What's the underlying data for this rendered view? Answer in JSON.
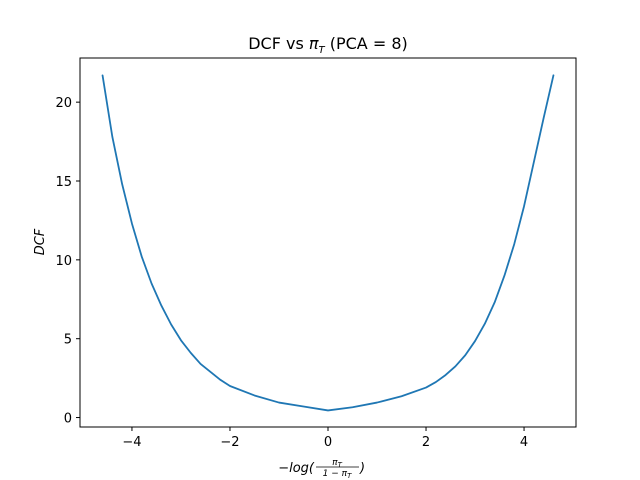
{
  "chart_data": {
    "type": "line",
    "title_parts": {
      "prefix": "DCF vs ",
      "symbol": "π",
      "sub": "T",
      "suffix": " (PCA = 8)"
    },
    "xlabel_parts": {
      "lead": "−log(",
      "num": "π",
      "num_sub": "T",
      "den": "1 − π",
      "den_sub": "T",
      "trail": ")"
    },
    "ylabel": "DCF",
    "xlim": [
      -5.06,
      5.06
    ],
    "ylim": [
      -0.6,
      22.8
    ],
    "x_ticks": [
      -4,
      -2,
      0,
      2,
      4
    ],
    "x_tick_labels": [
      "−4",
      "−2",
      "0",
      "2",
      "4"
    ],
    "y_ticks": [
      0,
      5,
      10,
      15,
      20
    ],
    "y_tick_labels": [
      "0",
      "5",
      "10",
      "15",
      "20"
    ],
    "grid": false,
    "series": [
      {
        "color": "#1f77b4",
        "x": [
          -4.6,
          -4.4,
          -4.2,
          -4.0,
          -3.8,
          -3.6,
          -3.4,
          -3.2,
          -3.0,
          -2.8,
          -2.6,
          -2.4,
          -2.2,
          -2.0,
          -1.5,
          -1.0,
          -0.5,
          0.0,
          0.5,
          1.0,
          1.5,
          2.0,
          2.2,
          2.4,
          2.6,
          2.8,
          3.0,
          3.2,
          3.4,
          3.6,
          3.8,
          4.0,
          4.2,
          4.4,
          4.6
        ],
        "y": [
          21.7,
          17.8,
          14.8,
          12.3,
          10.2,
          8.5,
          7.1,
          5.9,
          4.9,
          4.1,
          3.4,
          2.9,
          2.4,
          2.0,
          1.4,
          0.95,
          0.7,
          0.45,
          0.65,
          0.95,
          1.35,
          1.9,
          2.25,
          2.7,
          3.25,
          3.95,
          4.85,
          5.95,
          7.3,
          9.0,
          11.0,
          13.4,
          16.2,
          19.0,
          21.7
        ]
      }
    ]
  }
}
